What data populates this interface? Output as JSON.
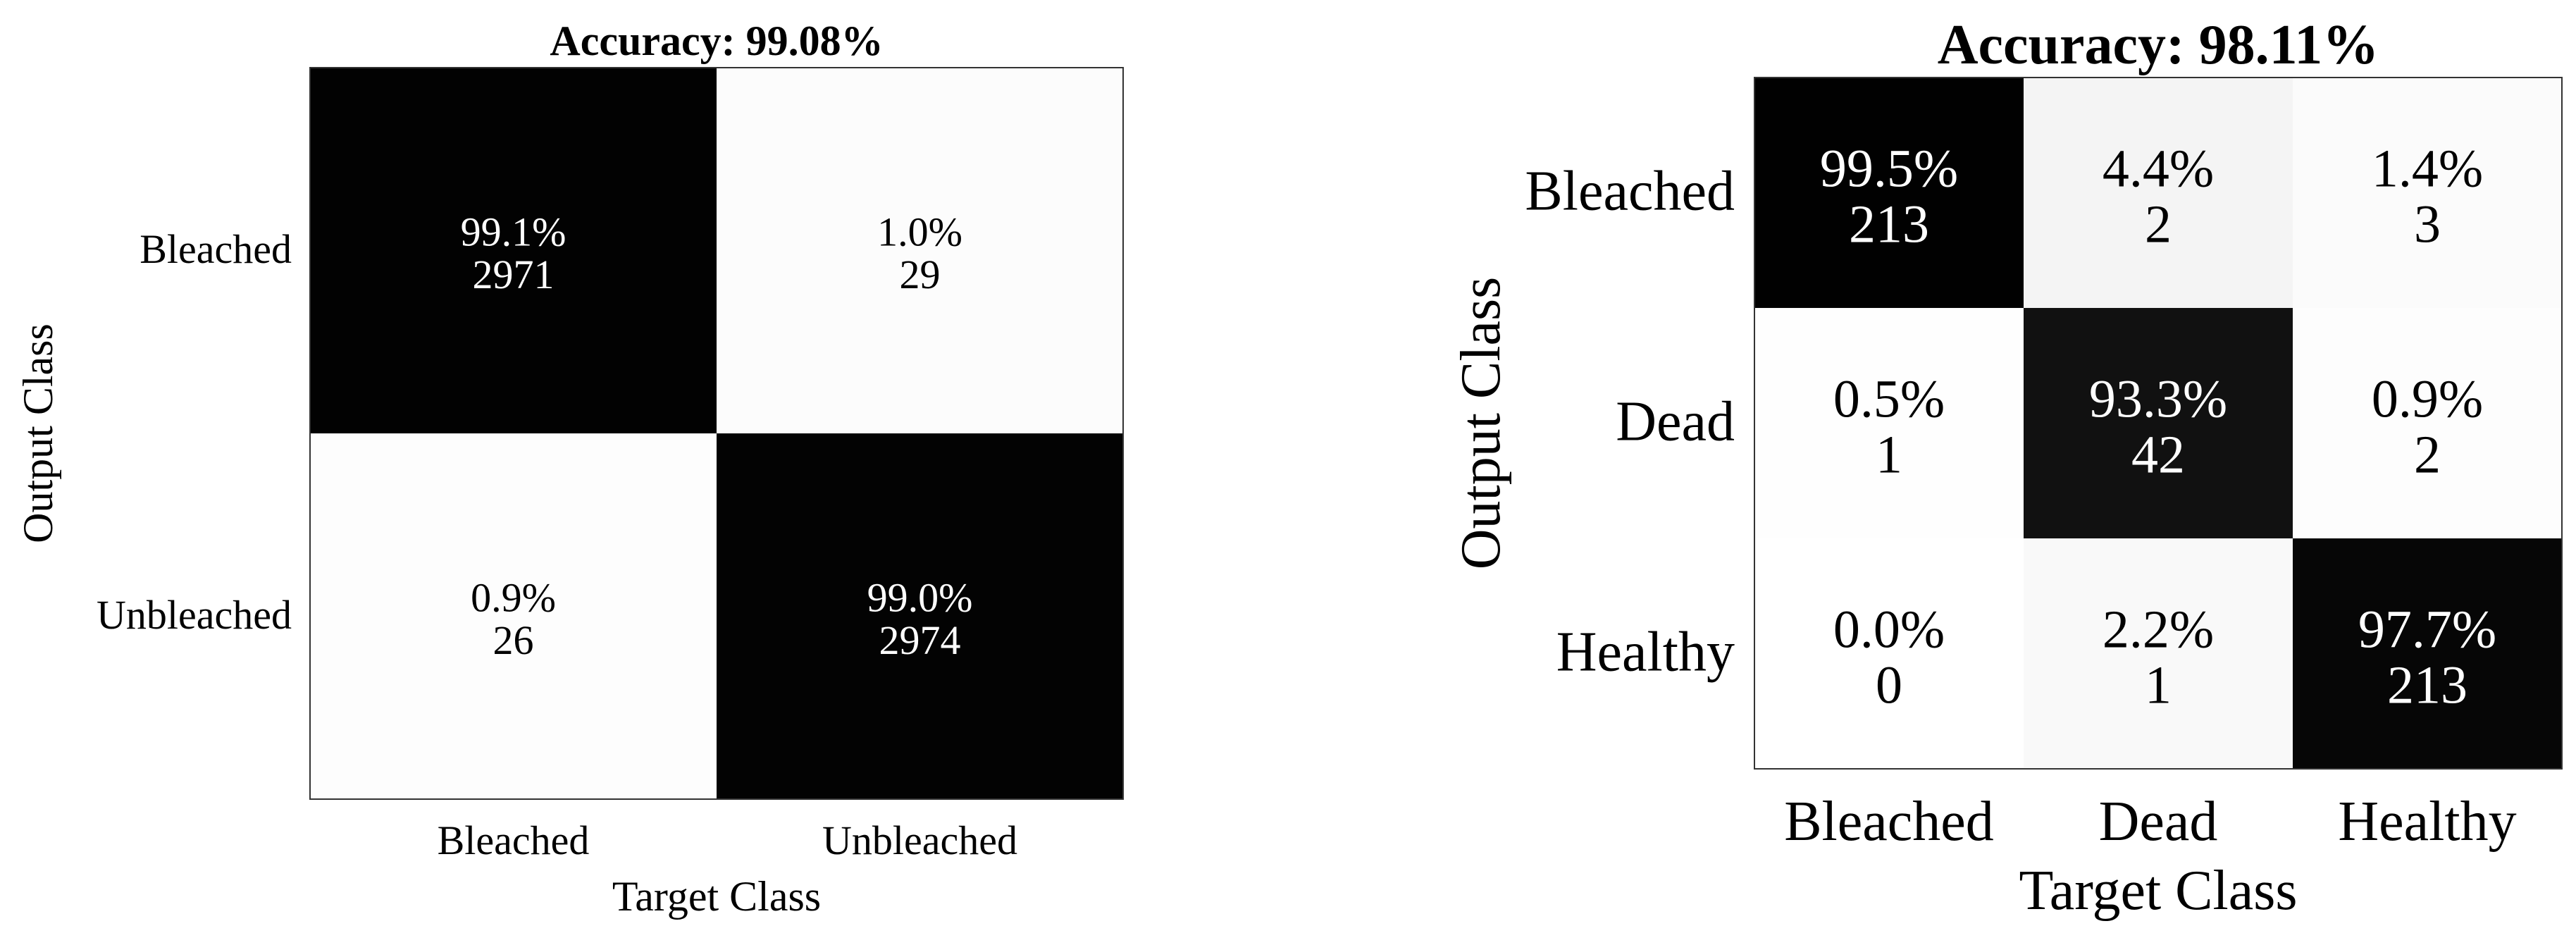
{
  "chart_data": [
    {
      "type": "heatmap",
      "title": "Accuracy: 99.08%",
      "xlabel": "Target Class",
      "ylabel": "Output Class",
      "x_categories": [
        "Bleached",
        "Unbleached"
      ],
      "y_categories": [
        "Bleached",
        "Unbleached"
      ],
      "cells": [
        [
          {
            "percent": "99.1%",
            "count": "2971",
            "value": 99.1
          },
          {
            "percent": "1.0%",
            "count": "29",
            "value": 1.0
          }
        ],
        [
          {
            "percent": "0.9%",
            "count": "26",
            "value": 0.9
          },
          {
            "percent": "99.0%",
            "count": "2974",
            "value": 99.0
          }
        ]
      ],
      "colormap": "grayscale: 0% white, 100% black",
      "legend": "none",
      "grid": false
    },
    {
      "type": "heatmap",
      "title": "Accuracy: 98.11%",
      "xlabel": "Target Class",
      "ylabel": "Output Class",
      "x_categories": [
        "Bleached",
        "Dead",
        "Healthy"
      ],
      "y_categories": [
        "Bleached",
        "Dead",
        "Healthy"
      ],
      "cells": [
        [
          {
            "percent": "99.5%",
            "count": "213",
            "value": 99.5
          },
          {
            "percent": "4.4%",
            "count": "2",
            "value": 4.4
          },
          {
            "percent": "1.4%",
            "count": "3",
            "value": 1.4
          }
        ],
        [
          {
            "percent": "0.5%",
            "count": "1",
            "value": 0.5
          },
          {
            "percent": "93.3%",
            "count": "42",
            "value": 93.3
          },
          {
            "percent": "0.9%",
            "count": "2",
            "value": 0.9
          }
        ],
        [
          {
            "percent": "0.0%",
            "count": "0",
            "value": 0.0
          },
          {
            "percent": "2.2%",
            "count": "1",
            "value": 2.2
          },
          {
            "percent": "97.7%",
            "count": "213",
            "value": 97.7
          }
        ]
      ],
      "colormap": "grayscale: 0% white, 100% black",
      "legend": "none",
      "grid": false
    }
  ]
}
